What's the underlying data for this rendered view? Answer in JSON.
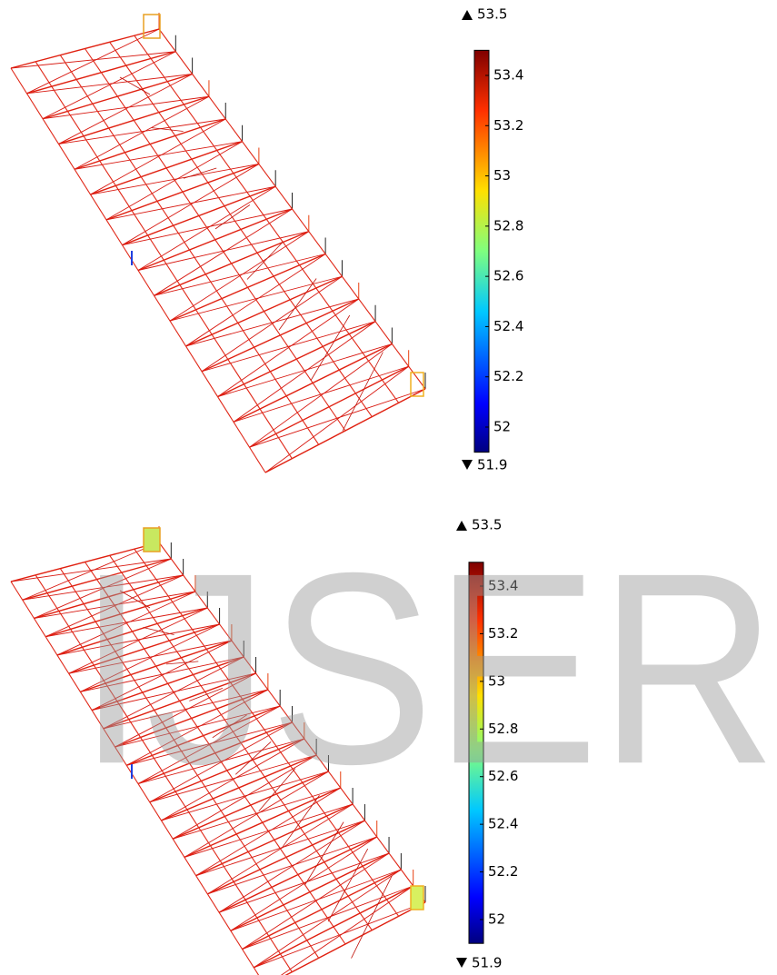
{
  "panels": [
    {
      "colorbar": {
        "max": 53.5,
        "min": 51.9,
        "ticks": [
          53.4,
          53.2,
          53,
          52.8,
          52.6,
          52.4,
          52.2,
          52
        ]
      }
    },
    {
      "colorbar": {
        "max": 53.5,
        "min": 51.9,
        "ticks": [
          53.4,
          53.2,
          53,
          52.8,
          52.6,
          52.4,
          52.2,
          52
        ]
      }
    }
  ],
  "watermark": "IJSER"
}
